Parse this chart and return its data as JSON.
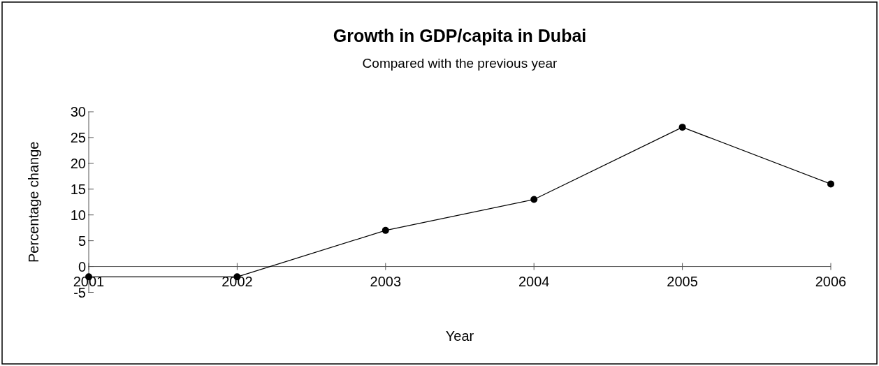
{
  "chart_data": {
    "type": "line",
    "title": "Growth in GDP/capita in Dubai",
    "subtitle": "Compared with the previous year",
    "xlabel": "Year",
    "ylabel": "Percentage change",
    "categories": [
      "2001",
      "2002",
      "2003",
      "2004",
      "2005",
      "2006"
    ],
    "series": [
      {
        "color": "#000000",
        "values": [
          -2,
          -2,
          7,
          13,
          27,
          16
        ]
      }
    ],
    "ylim": [
      -5,
      30
    ],
    "yticks": [
      -5,
      0,
      5,
      10,
      15,
      20,
      25,
      30
    ],
    "grid": false,
    "marker": "circle",
    "line_style": "solid"
  }
}
